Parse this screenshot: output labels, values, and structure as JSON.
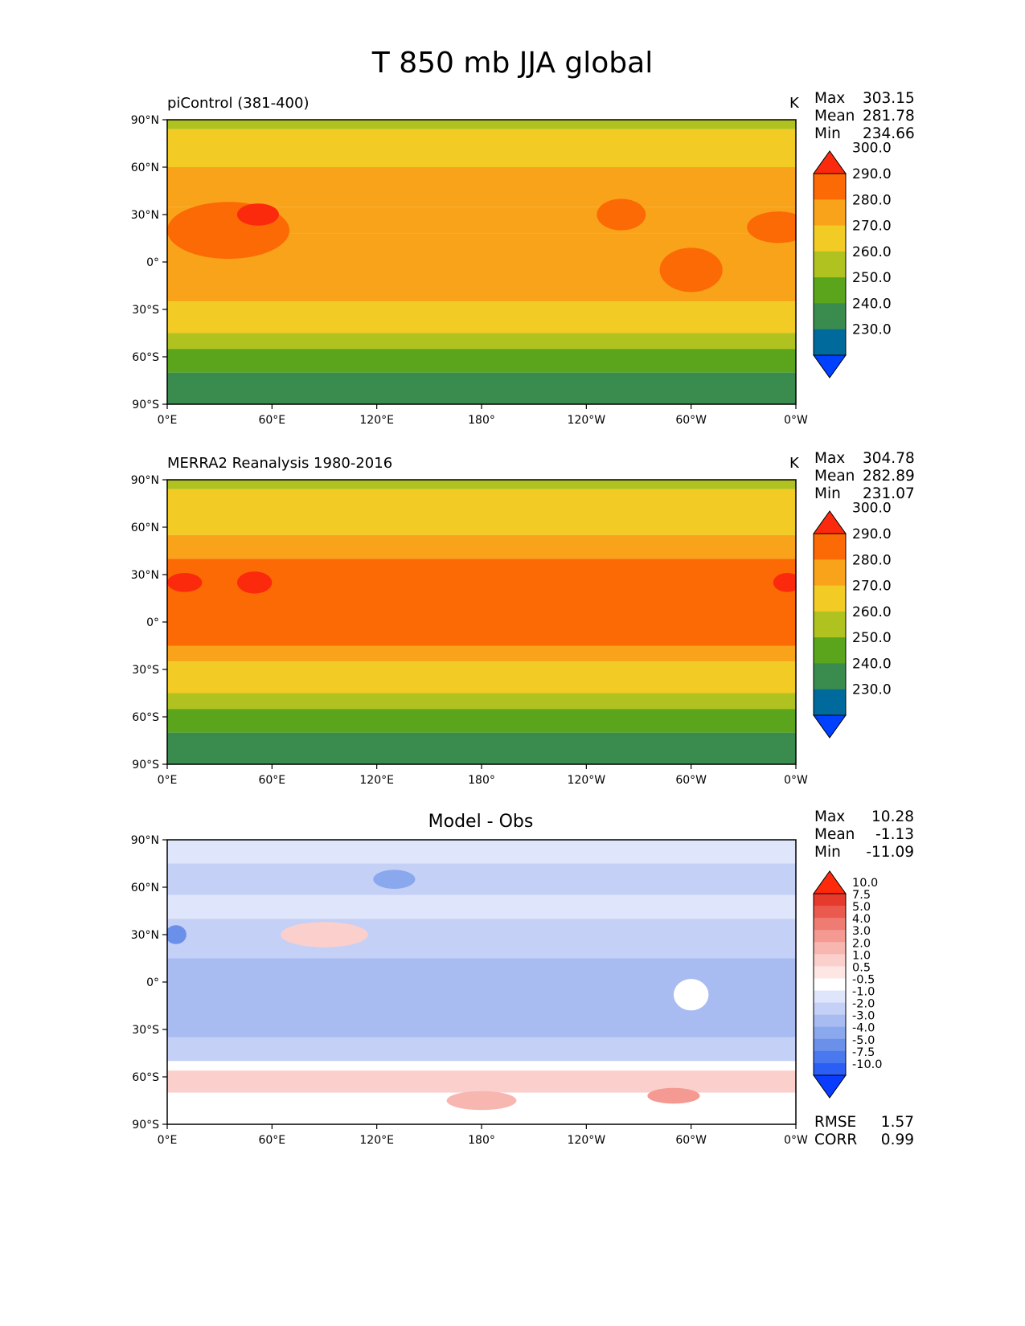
{
  "figure": {
    "title": "T 850 mb JJA global"
  },
  "chart_data": [
    {
      "type": "heatmap",
      "title": "piControl (381-400)",
      "units": "K",
      "stats": [
        {
          "label": "Max",
          "value": "303.15"
        },
        {
          "label": "Mean",
          "value": "281.78"
        },
        {
          "label": "Min",
          "value": "234.66"
        }
      ],
      "colorbar": {
        "levels": [
          "230.0",
          "240.0",
          "250.0",
          "260.0",
          "270.0",
          "280.0",
          "290.0",
          "300.0"
        ],
        "colors": [
          "#0040ff",
          "#006a9c",
          "#3a8c4e",
          "#5aa51c",
          "#b0c21f",
          "#f2cb25",
          "#f9a31a",
          "#fb6a05",
          "#fb2a0c"
        ]
      },
      "field": {
        "lat_bands": [
          {
            "from": 90,
            "to": 84,
            "level": 4
          },
          {
            "from": 84,
            "to": 60,
            "level": 5
          },
          {
            "from": 60,
            "to": 35,
            "level": 6
          },
          {
            "from": 35,
            "to": 18,
            "level": 6
          },
          {
            "from": 18,
            "to": -25,
            "level": 6
          },
          {
            "from": -25,
            "to": -45,
            "level": 5
          },
          {
            "from": -45,
            "to": -55,
            "level": 4
          },
          {
            "from": -55,
            "to": -70,
            "level": 3
          },
          {
            "from": -70,
            "to": -90,
            "level": 2
          }
        ],
        "warm_regions": [
          {
            "lon": 35,
            "lat": 20,
            "rlon": 35,
            "rlat": 18,
            "level": 7
          },
          {
            "lon": 52,
            "lat": 30,
            "rlon": 12,
            "rlat": 7,
            "level": 8
          },
          {
            "lon": 260,
            "lat": 30,
            "rlon": 14,
            "rlat": 10,
            "level": 7
          },
          {
            "lon": 350,
            "lat": 22,
            "rlon": 18,
            "rlat": 10,
            "level": 7
          },
          {
            "lon": 300,
            "lat": -5,
            "rlon": 18,
            "rlat": 14,
            "level": 7
          }
        ]
      },
      "axes": {
        "xticks": [
          "0°E",
          "60°E",
          "120°E",
          "180°",
          "120°W",
          "60°W",
          "0°W"
        ],
        "yticks": [
          "90°N",
          "60°N",
          "30°N",
          "0°",
          "30°S",
          "60°S",
          "90°S"
        ],
        "xlim": [
          0,
          360
        ],
        "ylim": [
          -90,
          90
        ]
      }
    },
    {
      "type": "heatmap",
      "title": "MERRA2 Reanalysis 1980-2016",
      "units": "K",
      "stats": [
        {
          "label": "Max",
          "value": "304.78"
        },
        {
          "label": "Mean",
          "value": "282.89"
        },
        {
          "label": "Min",
          "value": "231.07"
        }
      ],
      "colorbar": {
        "levels": [
          "230.0",
          "240.0",
          "250.0",
          "260.0",
          "270.0",
          "280.0",
          "290.0",
          "300.0"
        ],
        "colors": [
          "#0040ff",
          "#006a9c",
          "#3a8c4e",
          "#5aa51c",
          "#b0c21f",
          "#f2cb25",
          "#f9a31a",
          "#fb6a05",
          "#fb2a0c"
        ]
      },
      "field": {
        "lat_bands": [
          {
            "from": 90,
            "to": 84,
            "level": 4
          },
          {
            "from": 84,
            "to": 55,
            "level": 5
          },
          {
            "from": 55,
            "to": 40,
            "level": 6
          },
          {
            "from": 40,
            "to": -15,
            "level": 7
          },
          {
            "from": -15,
            "to": -25,
            "level": 6
          },
          {
            "from": -25,
            "to": -45,
            "level": 5
          },
          {
            "from": -45,
            "to": -55,
            "level": 4
          },
          {
            "from": -55,
            "to": -70,
            "level": 3
          },
          {
            "from": -70,
            "to": -90,
            "level": 2
          }
        ],
        "warm_regions": [
          {
            "lon": 10,
            "lat": 25,
            "rlon": 10,
            "rlat": 6,
            "level": 8
          },
          {
            "lon": 50,
            "lat": 25,
            "rlon": 10,
            "rlat": 7,
            "level": 8
          },
          {
            "lon": 355,
            "lat": 25,
            "rlon": 8,
            "rlat": 6,
            "level": 8
          }
        ]
      },
      "axes": {
        "xticks": [
          "0°E",
          "60°E",
          "120°E",
          "180°",
          "120°W",
          "60°W",
          "0°W"
        ],
        "yticks": [
          "90°N",
          "60°N",
          "30°N",
          "0°",
          "30°S",
          "60°S",
          "90°S"
        ],
        "xlim": [
          0,
          360
        ],
        "ylim": [
          -90,
          90
        ]
      }
    },
    {
      "type": "heatmap",
      "title": "Model - Obs",
      "stats": [
        {
          "label": "Max",
          "value": "10.28"
        },
        {
          "label": "Mean",
          "value": "-1.13"
        },
        {
          "label": "Min",
          "value": "-11.09"
        }
      ],
      "metrics": [
        {
          "label": "RMSE",
          "value": "1.57"
        },
        {
          "label": "CORR",
          "value": "0.99"
        }
      ],
      "colorbar": {
        "levels": [
          "-10.0",
          "-7.5",
          "-5.0",
          "-4.0",
          "-3.0",
          "-2.0",
          "-1.0",
          "-0.5",
          "0.5",
          "1.0",
          "2.0",
          "3.0",
          "4.0",
          "5.0",
          "7.5",
          "10.0"
        ],
        "colors": [
          "#0a3cff",
          "#2a5ef5",
          "#4a78ee",
          "#6a90ea",
          "#8aa8ee",
          "#a8bcf2",
          "#c4d0f6",
          "#dfe6fb",
          "#ffffff",
          "#fde6e4",
          "#fbd0cc",
          "#f8b6b0",
          "#f49a92",
          "#ef7c72",
          "#ea5a4e",
          "#e53a2c",
          "#ff2a0c"
        ]
      },
      "field": {
        "lat_bands": [
          {
            "from": 90,
            "to": 75,
            "level": 7
          },
          {
            "from": 75,
            "to": 55,
            "level": 6
          },
          {
            "from": 55,
            "to": 40,
            "level": 7
          },
          {
            "from": 40,
            "to": 15,
            "level": 6
          },
          {
            "from": 15,
            "to": -35,
            "level": 5
          },
          {
            "from": -35,
            "to": -50,
            "level": 6
          },
          {
            "from": -50,
            "to": -56,
            "level": 8
          },
          {
            "from": -56,
            "to": -70,
            "level": 10
          },
          {
            "from": -70,
            "to": -90,
            "level": 8
          }
        ],
        "warm_regions": [
          {
            "lon": 90,
            "lat": 30,
            "rlon": 25,
            "rlat": 8,
            "level": 10
          },
          {
            "lon": 300,
            "lat": -8,
            "rlon": 10,
            "rlat": 10,
            "level": 8
          },
          {
            "lon": 180,
            "lat": -75,
            "rlon": 20,
            "rlat": 6,
            "level": 11
          },
          {
            "lon": 290,
            "lat": -72,
            "rlon": 15,
            "rlat": 5,
            "level": 12
          },
          {
            "lon": 5,
            "lat": 30,
            "rlon": 6,
            "rlat": 6,
            "level": 3
          },
          {
            "lon": 130,
            "lat": 65,
            "rlon": 12,
            "rlat": 6,
            "level": 4
          }
        ]
      },
      "axes": {
        "xticks": [
          "0°E",
          "60°E",
          "120°E",
          "180°",
          "120°W",
          "60°W",
          "0°W"
        ],
        "yticks": [
          "90°N",
          "60°N",
          "30°N",
          "0°",
          "30°S",
          "60°S",
          "90°S"
        ],
        "xlim": [
          0,
          360
        ],
        "ylim": [
          -90,
          90
        ]
      }
    }
  ]
}
